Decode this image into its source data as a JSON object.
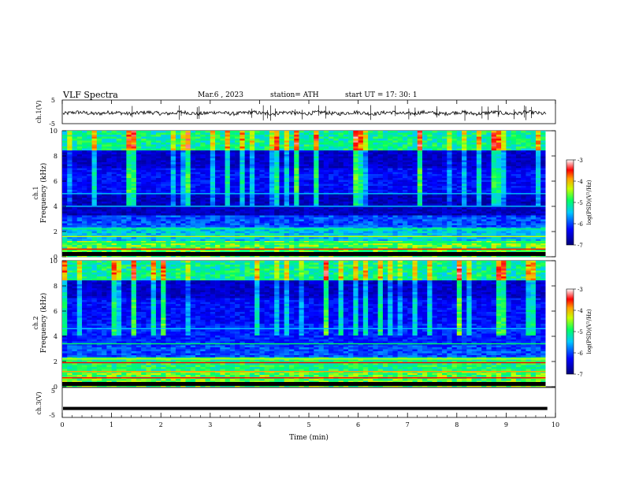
{
  "header": {
    "title": "VLF  Spectra",
    "date": "Mar.6  , 2023",
    "station": "station= ATH",
    "start": "start  UT  =   17: 30: 1"
  },
  "chart_data": [
    {
      "type": "line",
      "panel": "ch1-waveform",
      "ylabel": "ch.1(V)",
      "yticks": [
        "5",
        "-5"
      ],
      "ylim": [
        -5,
        5
      ],
      "xlim": [
        0,
        10
      ]
    },
    {
      "type": "heatmap",
      "panel": "ch1-spectrogram",
      "ylabel_line1": "ch.1",
      "ylabel_line2": "Frequency  (kHz)",
      "yticks": [
        "0",
        "2",
        "4",
        "6",
        "8",
        "10"
      ],
      "ylim": [
        0,
        10
      ],
      "xlim": [
        0,
        9.8
      ],
      "colorbar": {
        "label": "log(PSD)(V²/Hz)",
        "ticks": [
          "-3",
          "-4",
          "-5",
          "-6",
          "-7"
        ],
        "range": [
          -7,
          -3
        ]
      }
    },
    {
      "type": "heatmap",
      "panel": "ch2-spectrogram",
      "ylabel_line1": "ch.2",
      "ylabel_line2": "Frequency  (kHz)",
      "yticks": [
        "0",
        "2",
        "4",
        "6",
        "8",
        "10"
      ],
      "ylim": [
        0,
        10
      ],
      "xlim": [
        0,
        9.8
      ],
      "colorbar": {
        "label": "log(PSD)(V²/Hz)",
        "ticks": [
          "-3",
          "-4",
          "-5",
          "-6",
          "-7"
        ],
        "range": [
          -7,
          -3
        ]
      }
    },
    {
      "type": "line",
      "panel": "ch3-waveform",
      "ylabel": "ch.3(V)",
      "yticks": [
        "5",
        "-5"
      ],
      "ylim": [
        -5,
        5
      ],
      "xlim": [
        0,
        10
      ],
      "level": -2
    }
  ],
  "xaxis": {
    "label": "Time  (min)",
    "ticks": [
      "0",
      "1",
      "2",
      "3",
      "4",
      "5",
      "6",
      "7",
      "8",
      "9",
      "10"
    ]
  },
  "colors": {
    "colormap": [
      "#00007a",
      "#0000ff",
      "#00c8ff",
      "#00ff64",
      "#c8ff00",
      "#ffa000",
      "#ff0000",
      "#ffffff"
    ]
  }
}
